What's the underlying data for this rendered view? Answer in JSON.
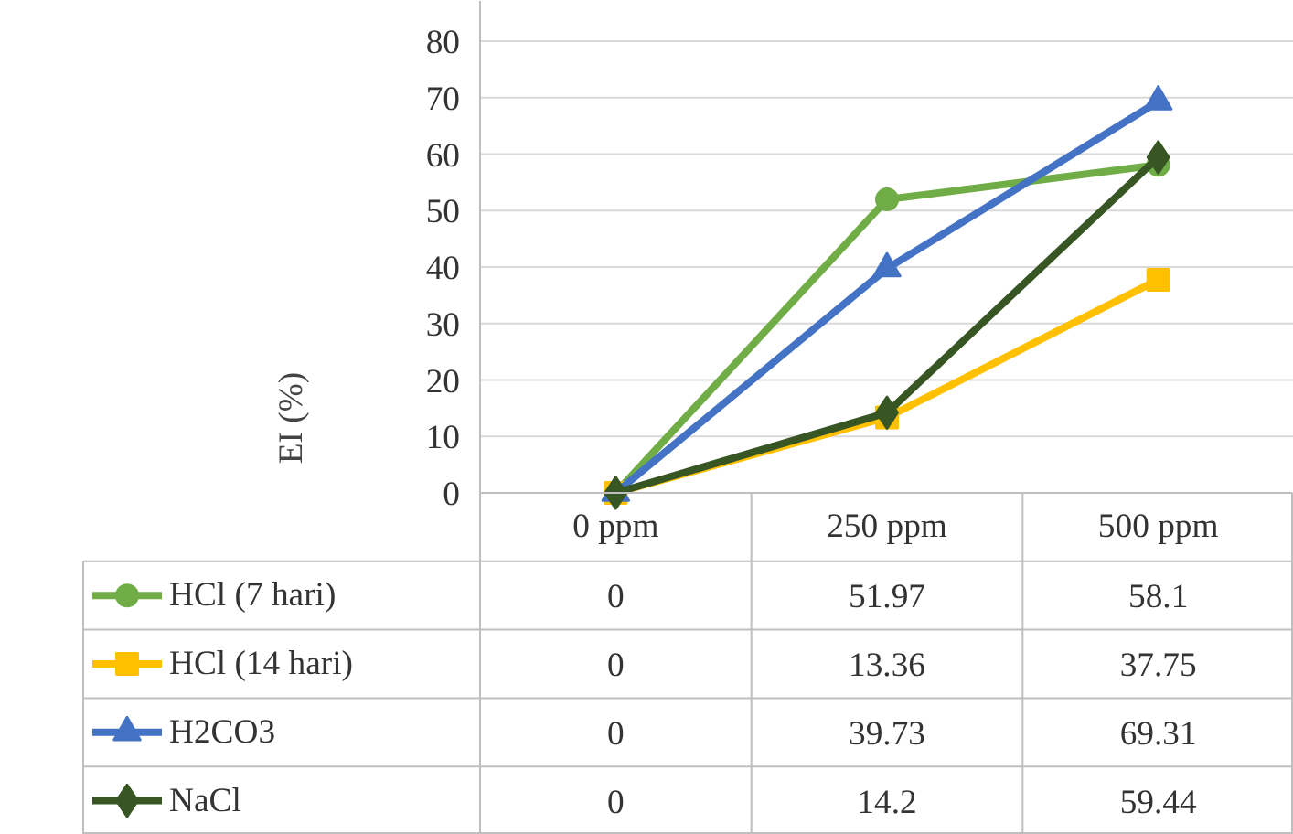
{
  "chart_data": {
    "type": "line",
    "ylabel": "EI (%)",
    "categories": [
      "0 ppm",
      "250 ppm",
      "500 ppm"
    ],
    "ylim": [
      0,
      80
    ],
    "yticks": [
      0,
      10,
      20,
      30,
      40,
      50,
      60,
      70,
      80
    ],
    "grid": "y",
    "legend": "bottom",
    "data_labels": true,
    "line_style": "solid",
    "series": [
      {
        "name": "HCl (7 hari)",
        "color": "#70ad47",
        "marker": "circle",
        "values": [
          0,
          51.97,
          58.1
        ]
      },
      {
        "name": "HCl (14 hari)",
        "color": "#ffc000",
        "marker": "square",
        "values": [
          0,
          13.36,
          37.75
        ]
      },
      {
        "name": "H2CO3",
        "color": "#4472c4",
        "marker": "triangle",
        "values": [
          0,
          39.73,
          69.31
        ]
      },
      {
        "name": "NaCl",
        "color": "#375623",
        "marker": "diamond",
        "values": [
          0,
          14.2,
          59.44
        ]
      }
    ]
  }
}
